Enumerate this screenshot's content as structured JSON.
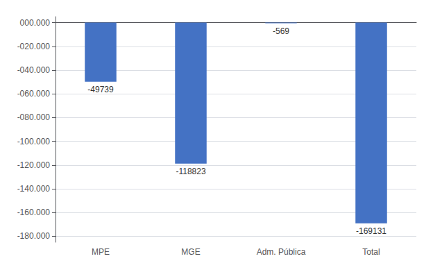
{
  "chart_data": {
    "type": "bar",
    "categories": [
      "MPE",
      "MGE",
      "Adm. Pública",
      "Total"
    ],
    "values": [
      -49739,
      -118823,
      -569,
      -169131
    ],
    "color": "#4472C4",
    "data_labels": true,
    "ylim": [
      -185000,
      5000
    ],
    "yticks": [
      {
        "value": 0,
        "label": "000.000"
      },
      {
        "value": -20000,
        "label": "-020.000"
      },
      {
        "value": -40000,
        "label": "-040.000"
      },
      {
        "value": -60000,
        "label": "-060.000"
      },
      {
        "value": -80000,
        "label": "-080.000"
      },
      {
        "value": -100000,
        "label": "-100.000"
      },
      {
        "value": -120000,
        "label": "-120.000"
      },
      {
        "value": -140000,
        "label": "-140.000"
      },
      {
        "value": -160000,
        "label": "-160.000"
      },
      {
        "value": -180000,
        "label": "-180.000"
      }
    ],
    "grid": true
  }
}
